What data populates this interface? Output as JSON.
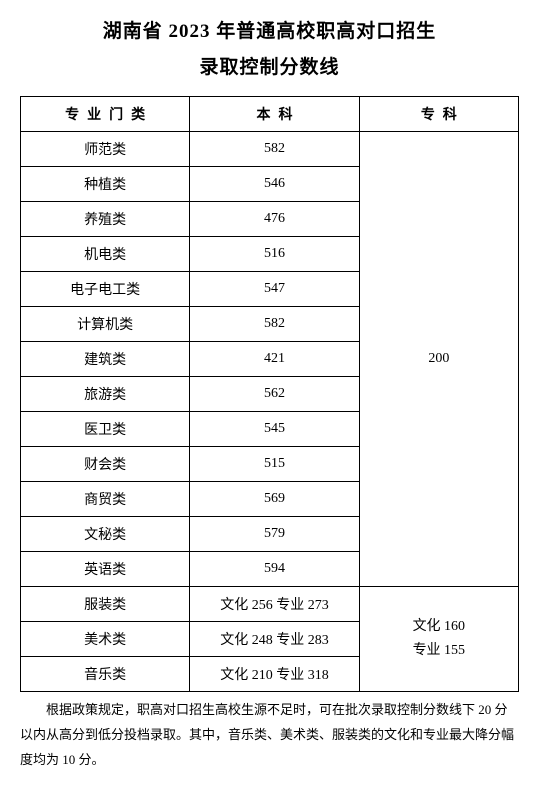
{
  "title_line1": "湖南省 2023 年普通高校职高对口招生",
  "title_line2": "录取控制分数线",
  "headers": {
    "major": "专业门类",
    "benke": "本科",
    "zhuanke": "专科"
  },
  "group1": {
    "rows": [
      {
        "major": "师范类",
        "benke": "582"
      },
      {
        "major": "种植类",
        "benke": "546"
      },
      {
        "major": "养殖类",
        "benke": "476"
      },
      {
        "major": "机电类",
        "benke": "516"
      },
      {
        "major": "电子电工类",
        "benke": "547"
      },
      {
        "major": "计算机类",
        "benke": "582"
      },
      {
        "major": "建筑类",
        "benke": "421"
      },
      {
        "major": "旅游类",
        "benke": "562"
      },
      {
        "major": "医卫类",
        "benke": "545"
      },
      {
        "major": "财会类",
        "benke": "515"
      },
      {
        "major": "商贸类",
        "benke": "569"
      },
      {
        "major": "文秘类",
        "benke": "579"
      },
      {
        "major": "英语类",
        "benke": "594"
      }
    ],
    "zhuanke_merged": "200"
  },
  "group2": {
    "rows": [
      {
        "major": "服装类",
        "benke": "文化 256 专业 273"
      },
      {
        "major": "美术类",
        "benke": "文化 248 专业 283"
      },
      {
        "major": "音乐类",
        "benke": "文化 210 专业 318"
      }
    ],
    "zhuanke_line1": "文化 160",
    "zhuanke_line2": "专业 155"
  },
  "footnote": "根据政策规定，职高对口招生高校生源不足时，可在批次录取控制分数线下 20 分以内从高分到低分投档录取。其中，音乐类、美术类、服装类的文化和专业最大降分幅度均为 10 分。"
}
